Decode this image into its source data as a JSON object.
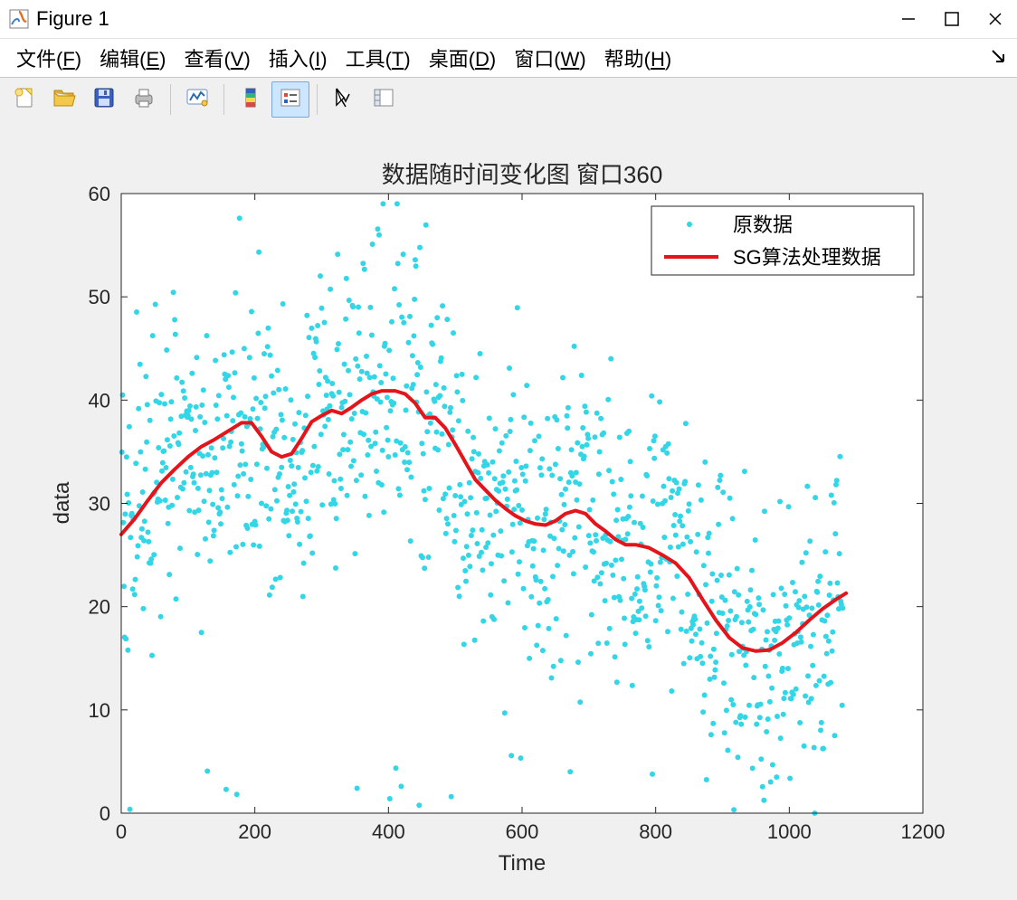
{
  "window": {
    "title": "Figure 1",
    "icon_colors": {
      "bg": "#ffffff",
      "border": "#7f7f7f",
      "accent": "#e4701e",
      "wave": "#3f7fbf"
    }
  },
  "menus": [
    {
      "label": "文件",
      "mnemonic": "F"
    },
    {
      "label": "编辑",
      "mnemonic": "E"
    },
    {
      "label": "查看",
      "mnemonic": "V"
    },
    {
      "label": "插入",
      "mnemonic": "I"
    },
    {
      "label": "工具",
      "mnemonic": "T"
    },
    {
      "label": "桌面",
      "mnemonic": "D"
    },
    {
      "label": "窗口",
      "mnemonic": "W"
    },
    {
      "label": "帮助",
      "mnemonic": "H"
    }
  ],
  "toolbar": {
    "buttons": [
      {
        "name": "new-figure",
        "active": false
      },
      {
        "name": "open",
        "active": false
      },
      {
        "name": "save",
        "active": false
      },
      {
        "name": "print",
        "active": false
      },
      {
        "sep": true
      },
      {
        "name": "link-axes",
        "active": false
      },
      {
        "sep": true
      },
      {
        "name": "colorbar",
        "active": false
      },
      {
        "name": "legend",
        "active": true
      },
      {
        "sep": true
      },
      {
        "name": "edit-plot",
        "active": false
      },
      {
        "name": "plot-tools",
        "active": false
      }
    ]
  },
  "chart": {
    "type": "scatter+line",
    "title": "数据随时间变化图 窗口360",
    "xlabel": "Time",
    "ylabel": "data",
    "title_fontsize": 26,
    "label_fontsize": 24,
    "tick_fontsize": 22,
    "background_color": "#ffffff",
    "figure_background": "#f0f0f0",
    "axis_color": "#262626",
    "box_on": true,
    "xlim": [
      0,
      1200
    ],
    "xtick_step": 200,
    "xticks": [
      0,
      200,
      400,
      600,
      800,
      1000,
      1200
    ],
    "ylim": [
      0,
      60
    ],
    "ytick_step": 10,
    "yticks": [
      0,
      10,
      20,
      30,
      40,
      50,
      60
    ],
    "scatter": {
      "label": "原数据",
      "color": "#33d6e6",
      "marker": "dot",
      "marker_size": 3,
      "n_points": 1080,
      "noise_sigma": 7.0,
      "x_range": [
        1,
        1080
      ]
    },
    "line": {
      "label": "SG算法处理数据",
      "color": "#e5131a",
      "width": 4,
      "points": [
        [
          0,
          27.0
        ],
        [
          20,
          28.5
        ],
        [
          40,
          30.3
        ],
        [
          60,
          32.0
        ],
        [
          80,
          33.3
        ],
        [
          100,
          34.5
        ],
        [
          120,
          35.5
        ],
        [
          140,
          36.2
        ],
        [
          160,
          37.0
        ],
        [
          180,
          37.8
        ],
        [
          195,
          37.8
        ],
        [
          210,
          36.5
        ],
        [
          225,
          35.0
        ],
        [
          240,
          34.5
        ],
        [
          255,
          34.8
        ],
        [
          270,
          36.3
        ],
        [
          285,
          37.9
        ],
        [
          300,
          38.5
        ],
        [
          315,
          39.0
        ],
        [
          330,
          38.7
        ],
        [
          345,
          39.3
        ],
        [
          360,
          40.0
        ],
        [
          375,
          40.6
        ],
        [
          390,
          40.9
        ],
        [
          410,
          40.9
        ],
        [
          425,
          40.6
        ],
        [
          440,
          39.7
        ],
        [
          455,
          38.3
        ],
        [
          470,
          38.3
        ],
        [
          485,
          37.3
        ],
        [
          500,
          35.7
        ],
        [
          515,
          34.0
        ],
        [
          530,
          32.3
        ],
        [
          545,
          31.3
        ],
        [
          560,
          30.3
        ],
        [
          575,
          29.5
        ],
        [
          590,
          28.8
        ],
        [
          605,
          28.3
        ],
        [
          620,
          28.0
        ],
        [
          635,
          27.9
        ],
        [
          650,
          28.3
        ],
        [
          665,
          29.0
        ],
        [
          680,
          29.3
        ],
        [
          695,
          29.0
        ],
        [
          710,
          28.0
        ],
        [
          725,
          27.3
        ],
        [
          740,
          26.5
        ],
        [
          755,
          26.0
        ],
        [
          770,
          26.0
        ],
        [
          790,
          25.7
        ],
        [
          810,
          25.0
        ],
        [
          830,
          24.2
        ],
        [
          850,
          22.8
        ],
        [
          870,
          20.7
        ],
        [
          890,
          18.7
        ],
        [
          910,
          17.0
        ],
        [
          930,
          16.0
        ],
        [
          950,
          15.7
        ],
        [
          970,
          15.8
        ],
        [
          990,
          16.5
        ],
        [
          1010,
          17.5
        ],
        [
          1030,
          18.7
        ],
        [
          1050,
          19.8
        ],
        [
          1070,
          20.7
        ],
        [
          1085,
          21.3
        ]
      ]
    },
    "legend": {
      "position": "northeast",
      "border_color": "#262626",
      "bg": "#ffffff",
      "items": [
        {
          "type": "marker",
          "text": "原数据"
        },
        {
          "type": "line",
          "text": "SG算法处理数据"
        }
      ]
    }
  }
}
